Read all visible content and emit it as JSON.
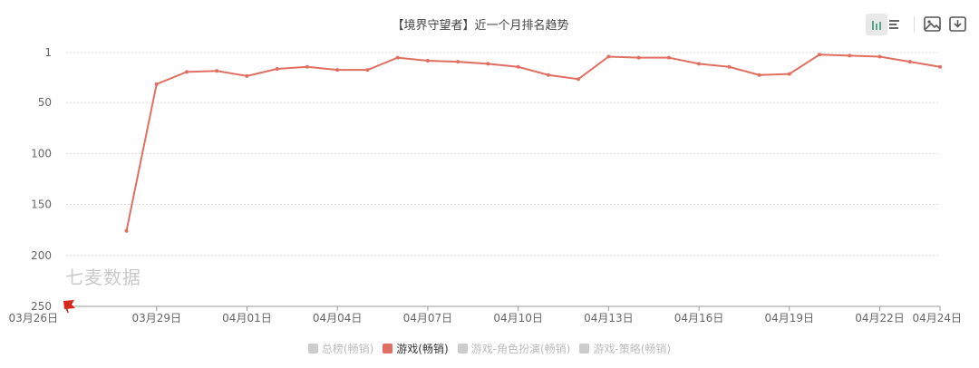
{
  "title": "【境界守望者】近一个月排名趋势",
  "watermark": "七麦数据",
  "colors": {
    "line": "#e06f62",
    "grid": "#d9d9d9",
    "axis": "#999999",
    "inactive": "#cccccc"
  },
  "icons": [
    "bar-chart-icon",
    "line-chart-icon",
    "save-image-icon",
    "download-icon",
    "flag-icon"
  ],
  "legend": [
    {
      "label": "总榜(畅销)",
      "active": false
    },
    {
      "label": "游戏(畅销)",
      "active": true
    },
    {
      "label": "游戏-角色扮演(畅销)",
      "active": false
    },
    {
      "label": "游戏-策略(畅销)",
      "active": false
    }
  ],
  "chart_data": {
    "type": "line",
    "title": "【境界守望者】近一个月排名趋势",
    "xlabel": "",
    "ylabel": "",
    "y_inverted": true,
    "ylim": [
      1,
      250
    ],
    "y_ticks": [
      1,
      50,
      100,
      150,
      200,
      250
    ],
    "x_range": [
      "03月26日",
      "04月24日"
    ],
    "x_tick_labels": [
      "03月26日",
      "03月29日",
      "04月01日",
      "04月04日",
      "04月07日",
      "04月10日",
      "04月13日",
      "04月16日",
      "04月19日",
      "04月22日",
      "04月24日"
    ],
    "grid": true,
    "legend_position": "bottom",
    "series": [
      {
        "name": "游戏(畅销)",
        "x": [
          "03月28日",
          "03月29日",
          "03月30日",
          "03月31日",
          "04月01日",
          "04月02日",
          "04月03日",
          "04月04日",
          "04月05日",
          "04月06日",
          "04月07日",
          "04月08日",
          "04月09日",
          "04月10日",
          "04月11日",
          "04月12日",
          "04月13日",
          "04月14日",
          "04月15日",
          "04月16日",
          "04月17日",
          "04月18日",
          "04月19日",
          "04月20日",
          "04月21日",
          "04月22日",
          "04月23日",
          "04月24日"
        ],
        "values": [
          176,
          32,
          20,
          19,
          24,
          17,
          15,
          18,
          18,
          6,
          9,
          10,
          12,
          15,
          23,
          27,
          5,
          6,
          6,
          12,
          15,
          23,
          22,
          3,
          4,
          5,
          10,
          15
        ]
      }
    ]
  }
}
